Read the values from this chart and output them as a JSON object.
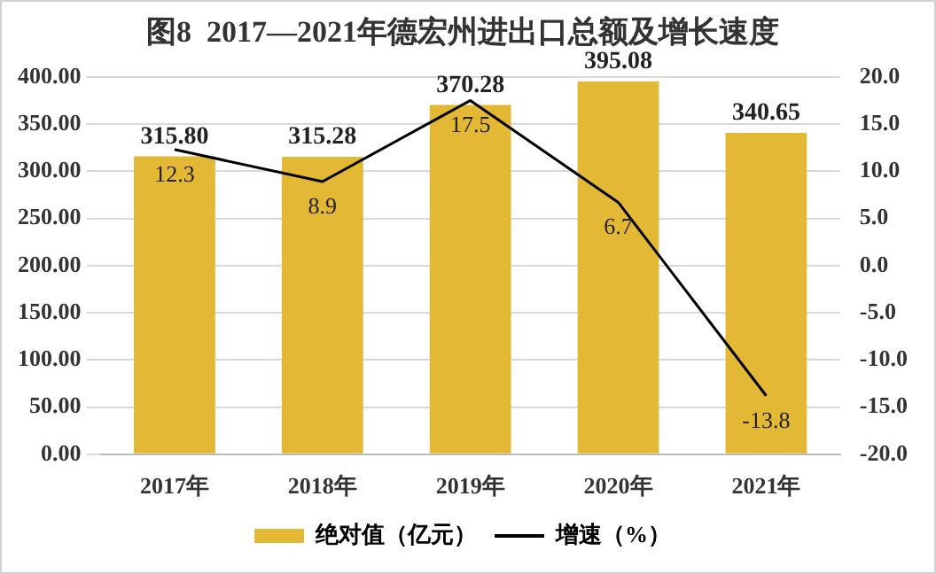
{
  "chart_data": {
    "type": "bar",
    "title": "图8  2017—2021年德宏州进出口总额及增长速度",
    "categories": [
      "2017年",
      "2018年",
      "2019年",
      "2020年",
      "2021年"
    ],
    "series": [
      {
        "name": "绝对值（亿元）",
        "color": "#e2b834",
        "values": [
          315.8,
          315.28,
          370.28,
          395.08,
          340.65
        ],
        "value_labels": [
          "315.80",
          "315.28",
          "370.28",
          "395.08",
          "340.65"
        ]
      },
      {
        "name": "增速（%）",
        "type": "line",
        "axis": "y2",
        "color": "#000000",
        "values": [
          12.3,
          8.9,
          17.5,
          6.7,
          -13.8
        ],
        "value_labels": [
          "12.3",
          "8.9",
          "17.5",
          "6.7",
          "-13.8"
        ]
      }
    ],
    "ylim": [
      0,
      400
    ],
    "yticks": [
      {
        "value": 0,
        "label": "0.00"
      },
      {
        "value": 50,
        "label": "50.00"
      },
      {
        "value": 100,
        "label": "100.00"
      },
      {
        "value": 150,
        "label": "150.00"
      },
      {
        "value": 200,
        "label": "200.00"
      },
      {
        "value": 250,
        "label": "250.00"
      },
      {
        "value": 300,
        "label": "300.00"
      },
      {
        "value": 350,
        "label": "350.00"
      },
      {
        "value": 400,
        "label": "400.00"
      }
    ],
    "y2lim": [
      -20,
      20
    ],
    "y2ticks": [
      {
        "value": -20,
        "label": "-20.0"
      },
      {
        "value": -15,
        "label": "-15.0"
      },
      {
        "value": -10,
        "label": "-10.0"
      },
      {
        "value": -5,
        "label": "-5.0"
      },
      {
        "value": 0,
        "label": "0.0"
      },
      {
        "value": 5,
        "label": "5.0"
      },
      {
        "value": 10,
        "label": "10.0"
      },
      {
        "value": 15,
        "label": "15.0"
      },
      {
        "value": 20,
        "label": "20.0"
      }
    ],
    "grid": "y",
    "legend": "bottom",
    "marker": "none",
    "line_style": "solid"
  }
}
